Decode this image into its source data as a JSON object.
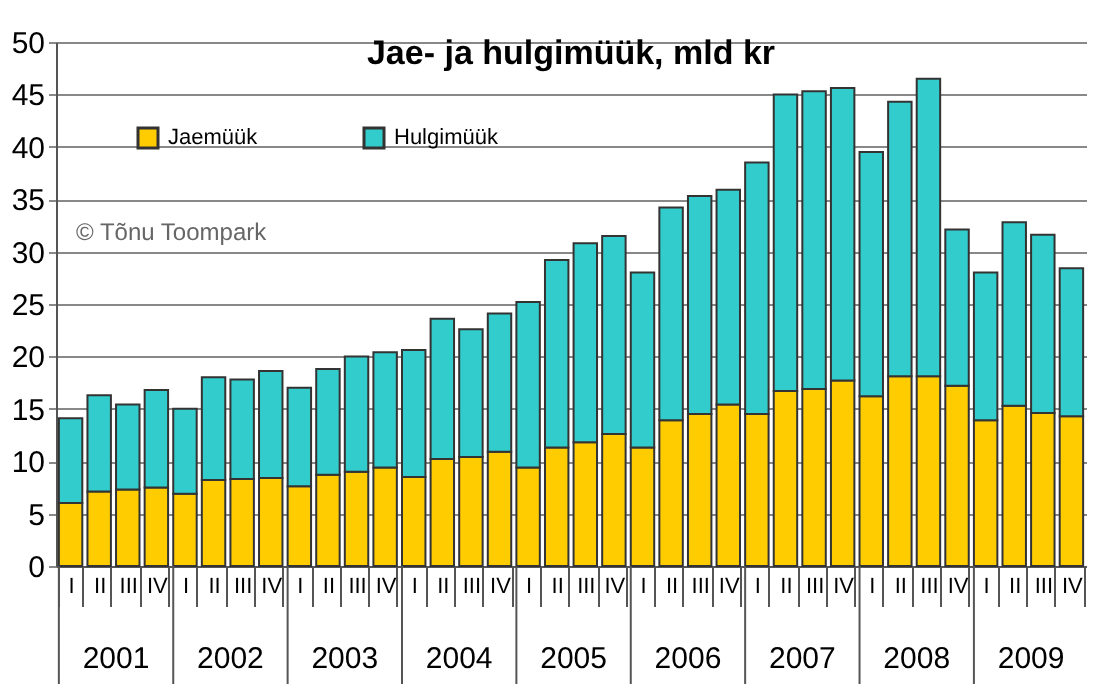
{
  "chart_data": {
    "type": "bar",
    "title": "Jae- ja hulgimüük, mld kr",
    "stacked": true,
    "legend": "top left",
    "grid": "y",
    "categories": [
      "I",
      "II",
      "III",
      "IV",
      "I",
      "II",
      "III",
      "IV",
      "I",
      "II",
      "III",
      "IV",
      "I",
      "II",
      "III",
      "IV",
      "I",
      "II",
      "III",
      "IV",
      "I",
      "II",
      "III",
      "IV",
      "I",
      "II",
      "III",
      "IV",
      "I",
      "II",
      "III",
      "IV",
      "I",
      "II",
      "III",
      "IV"
    ],
    "series": [
      {
        "name": "Jaemüük",
        "color": "#ffcc00",
        "values": [
          6.0,
          7.1,
          7.3,
          7.5,
          6.9,
          8.2,
          8.3,
          8.4,
          7.6,
          8.7,
          9.0,
          9.4,
          8.5,
          10.2,
          10.4,
          10.9,
          9.4,
          11.3,
          11.8,
          12.6,
          11.3,
          13.9,
          14.5,
          15.4,
          14.5,
          16.7,
          16.9,
          17.7,
          16.2,
          18.1,
          18.1,
          17.2,
          13.9,
          15.3,
          14.6,
          14.3
        ]
      },
      {
        "name": "Hulgimüük",
        "color": "#33cccc",
        "values": [
          8.1,
          9.2,
          8.1,
          9.3,
          8.1,
          9.8,
          9.5,
          10.2,
          9.4,
          10.1,
          11.0,
          11.0,
          12.1,
          13.4,
          12.2,
          13.2,
          15.8,
          17.9,
          19.0,
          18.9,
          16.7,
          20.3,
          20.8,
          20.5,
          24.0,
          28.3,
          28.4,
          27.9,
          23.3,
          26.2,
          28.4,
          14.9,
          14.1,
          17.5,
          17.0,
          14.1
        ]
      }
    ],
    "ylim": [
      0,
      50
    ],
    "yticks": [
      0,
      5,
      10,
      15,
      20,
      25,
      30,
      35,
      40,
      45,
      50
    ],
    "annotations": [
      "2001",
      "2002",
      "2003",
      "2004",
      "2005",
      "2006",
      "2007",
      "2008",
      "2009",
      "© Tõnu Toompark"
    ]
  }
}
